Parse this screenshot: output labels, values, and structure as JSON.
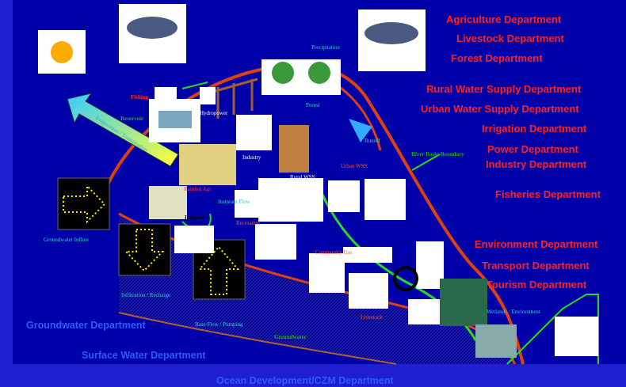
{
  "departments": {
    "agriculture": "Agriculture Department",
    "livestock": "Livestock Department",
    "forest": "Forest Department",
    "rural_water": "Rural Water Supply Department",
    "urban_water": "Urban Water Supply Department",
    "irrigation": "Irrigation Department",
    "power": "Power Department",
    "industry": "Industry Department",
    "fisheries": "Fisheries Department",
    "environment": "Environment Department",
    "transport": "Transport Department",
    "tourism": "Tourism Department",
    "groundwater": "Groundwater Department",
    "surface_water": "Surface Water Department",
    "ocean": "Ocean Development/CZM Department"
  },
  "labels": {
    "precipitation": "Precipitation",
    "fishing": "Fishing",
    "reservoir": "Reservoir",
    "hydropower": "Hydropower",
    "forest": "Forest",
    "runoff": "Runoff",
    "river_basin_boundary": "River Basin Boundary",
    "industry": "Industry",
    "rural_wss": "Rural WSS",
    "urban_wss": "Urban WSS",
    "evaporation": "Evaporation / Transpiration",
    "rainfed_agr": "Rainfed Agr",
    "instream_flow": "Instream Flow",
    "irrigation": "Irrigation",
    "recreation": "Recreation",
    "groundwater_inflow": "Groundwater Inflow",
    "community_use": "Community Use",
    "infiltration": "Infiltration / Recharge",
    "base_flow": "Base Flow / Pumping",
    "groundwater": "Groundwater",
    "livestock": "Livestock",
    "wetlands": "Wetlands / Environment"
  }
}
